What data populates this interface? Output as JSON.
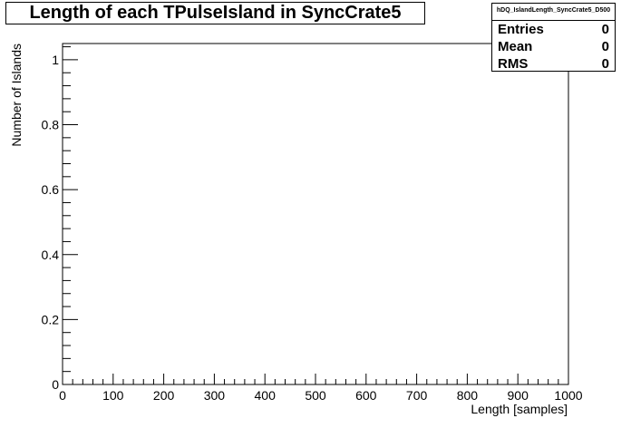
{
  "chart_data": {
    "type": "bar",
    "title": "Length of each TPulseIsland in SyncCrate5",
    "xlabel": "Length [samples]",
    "ylabel": "Number of Islands",
    "xlim": [
      0,
      1000
    ],
    "ylim": [
      0,
      1.05
    ],
    "x_ticks": [
      "0",
      "100",
      "200",
      "300",
      "400",
      "500",
      "600",
      "700",
      "800",
      "900",
      "1000"
    ],
    "y_ticks": [
      "0",
      "0.2",
      "0.4",
      "0.6",
      "0.8",
      "1"
    ],
    "grid": false,
    "legend": "none",
    "series": [],
    "stats": {
      "name": "hDQ_IslandLength_SyncCrate5_D500",
      "rows": [
        {
          "label": "Entries",
          "value": "0"
        },
        {
          "label": "Mean",
          "value": "0"
        },
        {
          "label": "RMS",
          "value": "0"
        }
      ]
    }
  }
}
